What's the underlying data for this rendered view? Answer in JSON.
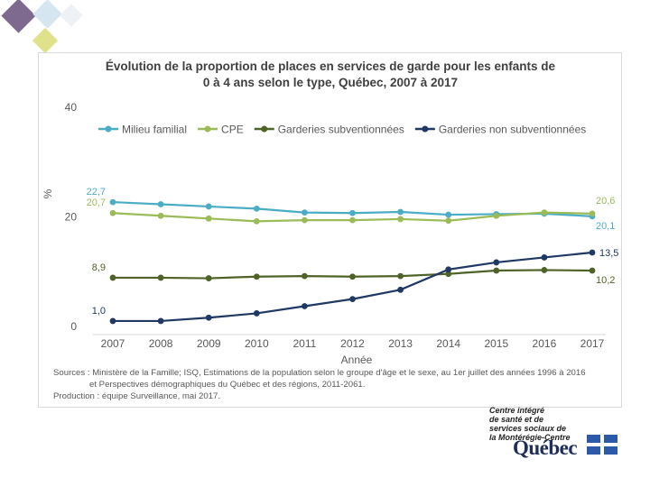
{
  "chart_data": {
    "type": "line",
    "title_line1": "Évolution de la proportion de places en services de garde pour les enfants de",
    "title_line2": "0 à 4 ans selon le type, Québec, 2007 à 2017",
    "xlabel": "Année",
    "ylabel": "%",
    "ylim": [
      0,
      40
    ],
    "yticks": [
      "0",
      "20",
      "40"
    ],
    "categories": [
      "2007",
      "2008",
      "2009",
      "2010",
      "2011",
      "2012",
      "2013",
      "2014",
      "2015",
      "2016",
      "2017"
    ],
    "legend_position": "top",
    "series": [
      {
        "name": "Milieu familial",
        "color": "#4bacc6",
        "values": [
          22.7,
          22.3,
          21.9,
          21.5,
          20.8,
          20.7,
          20.9,
          20.4,
          20.5,
          20.6,
          20.1
        ]
      },
      {
        "name": "CPE",
        "color": "#9bbb59",
        "values": [
          20.7,
          20.2,
          19.7,
          19.2,
          19.4,
          19.4,
          19.6,
          19.3,
          20.2,
          20.8,
          20.6
        ]
      },
      {
        "name": "Garderies subventionnées",
        "color": "#4f6228",
        "values": [
          8.9,
          8.9,
          8.8,
          9.1,
          9.2,
          9.1,
          9.2,
          9.6,
          10.2,
          10.3,
          10.2
        ]
      },
      {
        "name": "Garderies non subventionnées",
        "color": "#1f3864",
        "values": [
          1.0,
          1.0,
          1.6,
          2.4,
          3.7,
          5.0,
          6.7,
          10.4,
          11.7,
          12.6,
          13.5
        ]
      }
    ],
    "annotations": [
      {
        "text": "22,7",
        "series": 0,
        "point": 0,
        "side": "left"
      },
      {
        "text": "20,7",
        "series": 1,
        "point": 0,
        "side": "left"
      },
      {
        "text": "8,9",
        "series": 2,
        "point": 0,
        "side": "left"
      },
      {
        "text": "1,0",
        "series": 3,
        "point": 0,
        "side": "left"
      },
      {
        "text": "20,6",
        "series": 1,
        "point": 10,
        "side": "right-above"
      },
      {
        "text": "20,1",
        "series": 0,
        "point": 10,
        "side": "right-below"
      },
      {
        "text": "13,5",
        "series": 3,
        "point": 10,
        "side": "right"
      },
      {
        "text": "10,2",
        "series": 2,
        "point": 10,
        "side": "right-below"
      }
    ],
    "sources": [
      "Sources : Ministère de la Famille; ISQ, Estimations de la population selon le groupe d'âge et le sexe, au 1er juillet des années 1996 à 2016",
      "et Perspectives démographiques du Québec et des régions, 2011-2061.",
      "Production : équipe Surveillance, mai 2017."
    ]
  },
  "logo": {
    "lines": [
      "Centre intégré",
      "de santé et de",
      "services sociaux de",
      "la Montérégie-Centre"
    ],
    "wordmark": "Québec"
  }
}
